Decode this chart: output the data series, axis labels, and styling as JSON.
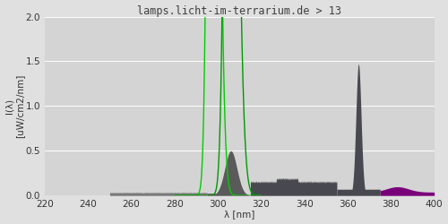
{
  "title": "lamps.licht-im-terrarium.de > 13",
  "xlabel": "λ [nm]",
  "ylabel": "I(λ)\n[uW/cm2/nm]",
  "xlim": [
    220,
    400
  ],
  "ylim": [
    0.0,
    2.0
  ],
  "xticks": [
    220,
    240,
    260,
    280,
    300,
    320,
    340,
    360,
    380,
    400
  ],
  "yticks": [
    0.0,
    0.5,
    1.0,
    1.5,
    2.0
  ],
  "bg_color": "#e0e0e0",
  "plot_bg_color": "#d4d4d4",
  "title_color": "#404040",
  "title_fontsize": 8.5,
  "axis_label_fontsize": 7.5,
  "tick_fontsize": 7.5,
  "figsize": [
    5.0,
    2.5
  ],
  "dpi": 100
}
